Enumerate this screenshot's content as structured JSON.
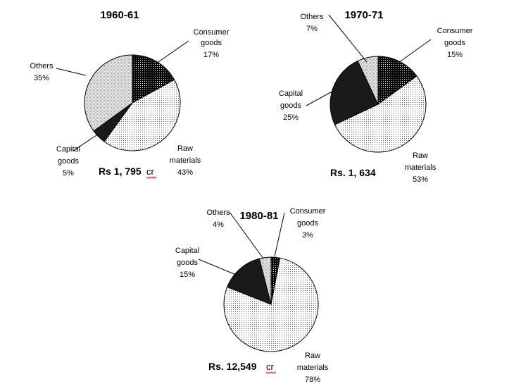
{
  "chart_data": [
    {
      "type": "pie",
      "title": "1960-61",
      "total_label": "Rs 1, 795",
      "total_unit": "cr",
      "slices": [
        {
          "name_lines": [
            "Consumer",
            "goods"
          ],
          "pct_text": "17%",
          "value": 17,
          "fill": "dark-dots"
        },
        {
          "name_lines": [
            "Raw",
            "materials"
          ],
          "pct_text": "43%",
          "value": 43,
          "fill": "light-dots"
        },
        {
          "name_lines": [
            "Capital",
            "goods"
          ],
          "pct_text": "5%",
          "value": 5,
          "fill": "black"
        },
        {
          "name_lines": [
            "Others"
          ],
          "pct_text": "35%",
          "value": 35,
          "fill": "light-gray"
        }
      ]
    },
    {
      "type": "pie",
      "title": "1970-71",
      "total_label": "Rs. 1, 634",
      "total_unit": "",
      "slices": [
        {
          "name_lines": [
            "Consumer",
            "goods"
          ],
          "pct_text": "15%",
          "value": 15,
          "fill": "dark-dots"
        },
        {
          "name_lines": [
            "Raw",
            "materials"
          ],
          "pct_text": "53%",
          "value": 53,
          "fill": "light-dots"
        },
        {
          "name_lines": [
            "Capital",
            "goods"
          ],
          "pct_text": "25%",
          "value": 25,
          "fill": "black"
        },
        {
          "name_lines": [
            "Others"
          ],
          "pct_text": "7%",
          "value": 7,
          "fill": "light-gray"
        }
      ]
    },
    {
      "type": "pie",
      "title": "1980-81",
      "total_label": "Rs. 12,549",
      "total_unit": "cr",
      "slices": [
        {
          "name_lines": [
            "Consumer",
            "goods"
          ],
          "pct_text": "3%",
          "value": 3,
          "fill": "dark-dots"
        },
        {
          "name_lines": [
            "Raw",
            "materials"
          ],
          "pct_text": "78%",
          "value": 78,
          "fill": "light-dots"
        },
        {
          "name_lines": [
            "Capital",
            "goods"
          ],
          "pct_text": "15%",
          "value": 15,
          "fill": "black"
        },
        {
          "name_lines": [
            "Others"
          ],
          "pct_text": "4%",
          "value": 4,
          "fill": "light-gray"
        }
      ]
    }
  ]
}
